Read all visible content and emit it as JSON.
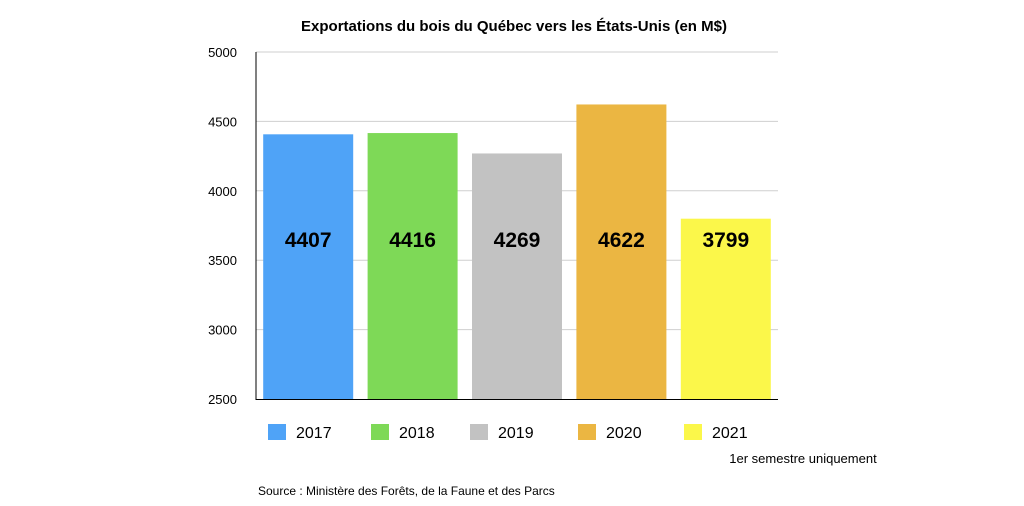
{
  "chart_data": {
    "type": "bar",
    "title": "Exportations du bois du Québec vers les États-Unis (en M$)",
    "categories": [
      "2017",
      "2018",
      "2019",
      "2020",
      "2021"
    ],
    "values": [
      4407,
      4416,
      4269,
      4622,
      3799
    ],
    "colors": [
      "#4fa3f7",
      "#7ed957",
      "#c2c2c2",
      "#ebb642",
      "#fbf74a"
    ],
    "ylim": [
      2500,
      5000
    ],
    "yticks": [
      2500,
      3000,
      3500,
      4000,
      4500,
      5000
    ],
    "grid": true,
    "legend": "bottom",
    "legend_note": "1er semestre uniquement",
    "source": "Source : Ministère des Forêts, de la Faune et des Parcs"
  }
}
